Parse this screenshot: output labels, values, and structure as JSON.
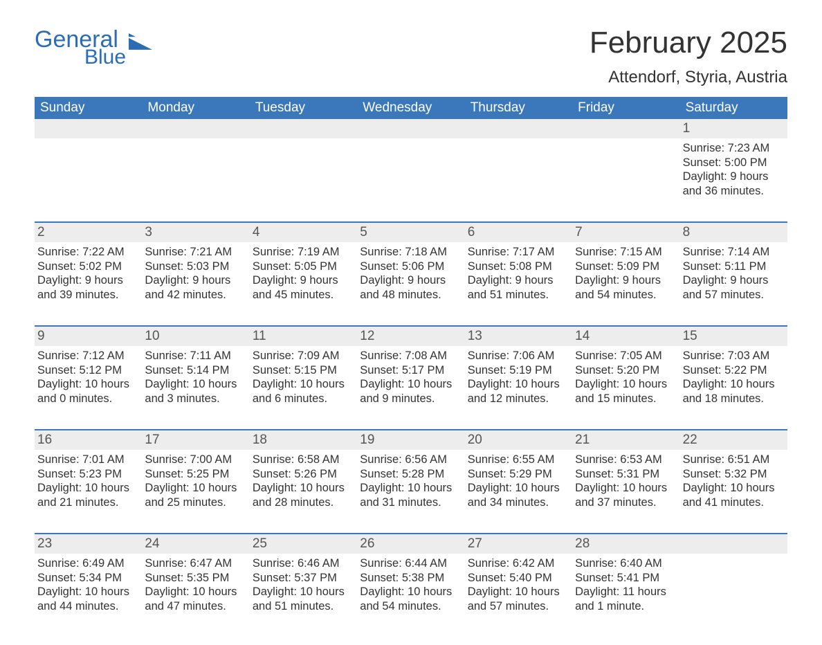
{
  "brand": {
    "name_part1": "General",
    "name_part2": "Blue",
    "logo_fill": "#2a6db4"
  },
  "title": "February 2025",
  "location": "Attendorf, Styria, Austria",
  "colors": {
    "header_bg": "#3b77bb",
    "header_text": "#ffffff",
    "band_bg": "#ededed",
    "rule": "#3b77bb",
    "text": "#333333",
    "page_bg": "#ffffff"
  },
  "weekdays": [
    "Sunday",
    "Monday",
    "Tuesday",
    "Wednesday",
    "Thursday",
    "Friday",
    "Saturday"
  ],
  "weeks": [
    [
      null,
      null,
      null,
      null,
      null,
      null,
      {
        "n": "1",
        "sunrise": "Sunrise: 7:23 AM",
        "sunset": "Sunset: 5:00 PM",
        "daylight": "Daylight: 9 hours and 36 minutes."
      }
    ],
    [
      {
        "n": "2",
        "sunrise": "Sunrise: 7:22 AM",
        "sunset": "Sunset: 5:02 PM",
        "daylight": "Daylight: 9 hours and 39 minutes."
      },
      {
        "n": "3",
        "sunrise": "Sunrise: 7:21 AM",
        "sunset": "Sunset: 5:03 PM",
        "daylight": "Daylight: 9 hours and 42 minutes."
      },
      {
        "n": "4",
        "sunrise": "Sunrise: 7:19 AM",
        "sunset": "Sunset: 5:05 PM",
        "daylight": "Daylight: 9 hours and 45 minutes."
      },
      {
        "n": "5",
        "sunrise": "Sunrise: 7:18 AM",
        "sunset": "Sunset: 5:06 PM",
        "daylight": "Daylight: 9 hours and 48 minutes."
      },
      {
        "n": "6",
        "sunrise": "Sunrise: 7:17 AM",
        "sunset": "Sunset: 5:08 PM",
        "daylight": "Daylight: 9 hours and 51 minutes."
      },
      {
        "n": "7",
        "sunrise": "Sunrise: 7:15 AM",
        "sunset": "Sunset: 5:09 PM",
        "daylight": "Daylight: 9 hours and 54 minutes."
      },
      {
        "n": "8",
        "sunrise": "Sunrise: 7:14 AM",
        "sunset": "Sunset: 5:11 PM",
        "daylight": "Daylight: 9 hours and 57 minutes."
      }
    ],
    [
      {
        "n": "9",
        "sunrise": "Sunrise: 7:12 AM",
        "sunset": "Sunset: 5:12 PM",
        "daylight": "Daylight: 10 hours and 0 minutes."
      },
      {
        "n": "10",
        "sunrise": "Sunrise: 7:11 AM",
        "sunset": "Sunset: 5:14 PM",
        "daylight": "Daylight: 10 hours and 3 minutes."
      },
      {
        "n": "11",
        "sunrise": "Sunrise: 7:09 AM",
        "sunset": "Sunset: 5:15 PM",
        "daylight": "Daylight: 10 hours and 6 minutes."
      },
      {
        "n": "12",
        "sunrise": "Sunrise: 7:08 AM",
        "sunset": "Sunset: 5:17 PM",
        "daylight": "Daylight: 10 hours and 9 minutes."
      },
      {
        "n": "13",
        "sunrise": "Sunrise: 7:06 AM",
        "sunset": "Sunset: 5:19 PM",
        "daylight": "Daylight: 10 hours and 12 minutes."
      },
      {
        "n": "14",
        "sunrise": "Sunrise: 7:05 AM",
        "sunset": "Sunset: 5:20 PM",
        "daylight": "Daylight: 10 hours and 15 minutes."
      },
      {
        "n": "15",
        "sunrise": "Sunrise: 7:03 AM",
        "sunset": "Sunset: 5:22 PM",
        "daylight": "Daylight: 10 hours and 18 minutes."
      }
    ],
    [
      {
        "n": "16",
        "sunrise": "Sunrise: 7:01 AM",
        "sunset": "Sunset: 5:23 PM",
        "daylight": "Daylight: 10 hours and 21 minutes."
      },
      {
        "n": "17",
        "sunrise": "Sunrise: 7:00 AM",
        "sunset": "Sunset: 5:25 PM",
        "daylight": "Daylight: 10 hours and 25 minutes."
      },
      {
        "n": "18",
        "sunrise": "Sunrise: 6:58 AM",
        "sunset": "Sunset: 5:26 PM",
        "daylight": "Daylight: 10 hours and 28 minutes."
      },
      {
        "n": "19",
        "sunrise": "Sunrise: 6:56 AM",
        "sunset": "Sunset: 5:28 PM",
        "daylight": "Daylight: 10 hours and 31 minutes."
      },
      {
        "n": "20",
        "sunrise": "Sunrise: 6:55 AM",
        "sunset": "Sunset: 5:29 PM",
        "daylight": "Daylight: 10 hours and 34 minutes."
      },
      {
        "n": "21",
        "sunrise": "Sunrise: 6:53 AM",
        "sunset": "Sunset: 5:31 PM",
        "daylight": "Daylight: 10 hours and 37 minutes."
      },
      {
        "n": "22",
        "sunrise": "Sunrise: 6:51 AM",
        "sunset": "Sunset: 5:32 PM",
        "daylight": "Daylight: 10 hours and 41 minutes."
      }
    ],
    [
      {
        "n": "23",
        "sunrise": "Sunrise: 6:49 AM",
        "sunset": "Sunset: 5:34 PM",
        "daylight": "Daylight: 10 hours and 44 minutes."
      },
      {
        "n": "24",
        "sunrise": "Sunrise: 6:47 AM",
        "sunset": "Sunset: 5:35 PM",
        "daylight": "Daylight: 10 hours and 47 minutes."
      },
      {
        "n": "25",
        "sunrise": "Sunrise: 6:46 AM",
        "sunset": "Sunset: 5:37 PM",
        "daylight": "Daylight: 10 hours and 51 minutes."
      },
      {
        "n": "26",
        "sunrise": "Sunrise: 6:44 AM",
        "sunset": "Sunset: 5:38 PM",
        "daylight": "Daylight: 10 hours and 54 minutes."
      },
      {
        "n": "27",
        "sunrise": "Sunrise: 6:42 AM",
        "sunset": "Sunset: 5:40 PM",
        "daylight": "Daylight: 10 hours and 57 minutes."
      },
      {
        "n": "28",
        "sunrise": "Sunrise: 6:40 AM",
        "sunset": "Sunset: 5:41 PM",
        "daylight": "Daylight: 11 hours and 1 minute."
      },
      null
    ]
  ]
}
